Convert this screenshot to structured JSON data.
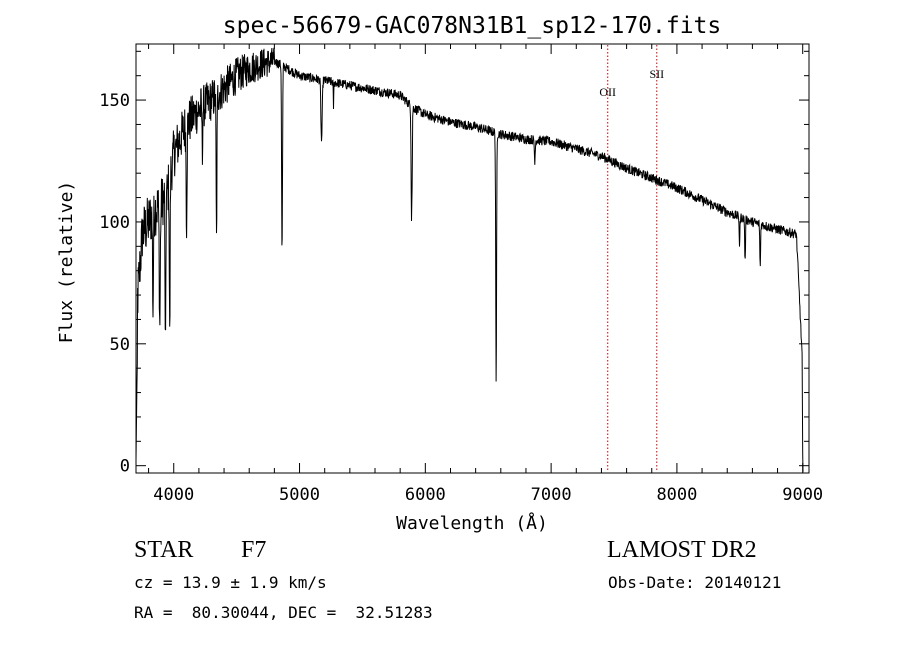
{
  "chart_data": {
    "type": "line",
    "title": "spec-56679-GAC078N31B1_sp12-170.fits",
    "xlabel": "Wavelength (Å)",
    "ylabel": "Flux (relative)",
    "xlim": [
      3700,
      9050
    ],
    "ylim": [
      -3,
      173
    ],
    "xticks": [
      4000,
      5000,
      6000,
      7000,
      8000,
      9000
    ],
    "yticks": [
      0,
      50,
      100,
      150
    ],
    "grid": false,
    "colors": {
      "spectrum": "#000000",
      "lines": "#cc0000"
    },
    "continuum_points": [
      [
        3700,
        60
      ],
      [
        3750,
        95
      ],
      [
        3800,
        100
      ],
      [
        3850,
        105
      ],
      [
        3900,
        108
      ],
      [
        3950,
        112
      ],
      [
        4000,
        128
      ],
      [
        4100,
        140
      ],
      [
        4200,
        146
      ],
      [
        4300,
        150
      ],
      [
        4400,
        155
      ],
      [
        4500,
        160
      ],
      [
        4600,
        163
      ],
      [
        4700,
        165
      ],
      [
        4800,
        166
      ],
      [
        4900,
        163
      ],
      [
        5000,
        160
      ],
      [
        5200,
        158
      ],
      [
        5400,
        156
      ],
      [
        5600,
        154
      ],
      [
        5800,
        152
      ],
      [
        5900,
        147
      ],
      [
        6000,
        144
      ],
      [
        6200,
        141
      ],
      [
        6400,
        139
      ],
      [
        6600,
        136
      ],
      [
        6800,
        134
      ],
      [
        7000,
        133
      ],
      [
        7200,
        130
      ],
      [
        7400,
        127
      ],
      [
        7600,
        122
      ],
      [
        7800,
        118
      ],
      [
        8000,
        114
      ],
      [
        8200,
        109
      ],
      [
        8400,
        104
      ],
      [
        8600,
        100
      ],
      [
        8800,
        97
      ],
      [
        8950,
        95
      ],
      [
        9000,
        40
      ]
    ],
    "absorption_lines": [
      [
        3835,
        40,
        12
      ],
      [
        3889,
        50,
        15
      ],
      [
        3934,
        70,
        10
      ],
      [
        3968,
        68,
        10
      ],
      [
        4102,
        40,
        12
      ],
      [
        4227,
        20,
        8
      ],
      [
        4340,
        60,
        12
      ],
      [
        4861,
        78,
        12
      ],
      [
        5175,
        25,
        18
      ],
      [
        5270,
        10,
        8
      ],
      [
        5890,
        45,
        12
      ],
      [
        5896,
        20,
        8
      ],
      [
        6563,
        105,
        12
      ],
      [
        6870,
        10,
        10
      ],
      [
        8498,
        12,
        10
      ],
      [
        8542,
        18,
        10
      ],
      [
        8662,
        18,
        10
      ]
    ],
    "noise_amplitude_blue": 12,
    "noise_amplitude_red": 2,
    "marked_lines": [
      {
        "label": "OII",
        "wavelength": 7450
      },
      {
        "label": "SII",
        "wavelength": 7840
      }
    ]
  },
  "info": {
    "object_class": "STAR",
    "subclass": "F7",
    "survey": "LAMOST DR2",
    "redshift": "cz = 13.9 ± 1.9 km/s",
    "obs_date": "Obs-Date: 20140121",
    "coords": "RA =  80.30044, DEC =  32.51283"
  }
}
